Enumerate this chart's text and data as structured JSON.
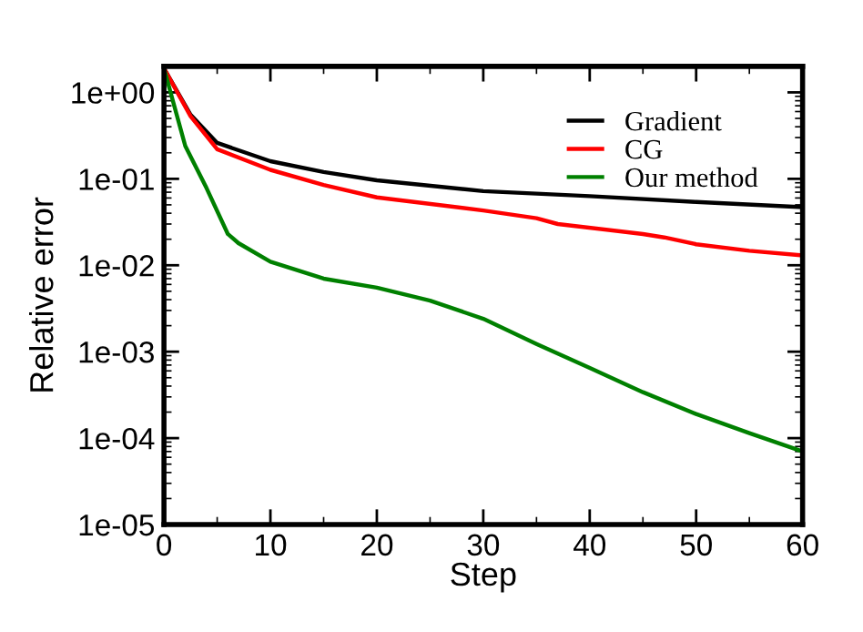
{
  "chart_data": {
    "type": "line",
    "xlabel": "Step",
    "ylabel": "Relative error",
    "xlim": [
      0,
      60
    ],
    "xticks": [
      0,
      10,
      20,
      30,
      40,
      50,
      60
    ],
    "ylim": [
      1e-05,
      2
    ],
    "log": true,
    "yticks": [
      {
        "value": 1e-05,
        "label": "1e-05"
      },
      {
        "value": 0.0001,
        "label": "1e-04"
      },
      {
        "value": 0.001,
        "label": "1e-03"
      },
      {
        "value": 0.01,
        "label": "1e-02"
      },
      {
        "value": 0.1,
        "label": "1e-01"
      },
      {
        "value": 1,
        "label": "1e+00"
      }
    ],
    "legend": "top right",
    "grid": false,
    "marker": "none",
    "line_style": "solid",
    "series": [
      {
        "name": "Gradient",
        "color": "#000000",
        "x": [
          0,
          2.5,
          5,
          10,
          15,
          20,
          30,
          40,
          50,
          60
        ],
        "values": [
          1.9,
          0.55,
          0.26,
          0.16,
          0.12,
          0.096,
          0.072,
          0.063,
          0.054,
          0.047
        ]
      },
      {
        "name": "CG",
        "color": "#ff0000",
        "x": [
          0,
          2.5,
          5,
          10,
          15,
          20,
          30,
          35,
          37,
          45,
          47,
          50,
          55,
          60
        ],
        "values": [
          1.9,
          0.53,
          0.22,
          0.127,
          0.085,
          0.061,
          0.043,
          0.035,
          0.03,
          0.023,
          0.021,
          0.0175,
          0.0147,
          0.013
        ]
      },
      {
        "name": "Our method",
        "color": "#008000",
        "x": [
          0,
          2,
          4,
          6,
          7,
          10,
          15,
          20,
          25,
          30,
          35,
          40,
          45,
          50,
          55,
          60
        ],
        "values": [
          1.9,
          0.24,
          0.078,
          0.023,
          0.018,
          0.011,
          0.007,
          0.0055,
          0.0039,
          0.0024,
          0.00123,
          0.00065,
          0.00034,
          0.00019,
          0.000114,
          7e-05
        ]
      }
    ]
  }
}
